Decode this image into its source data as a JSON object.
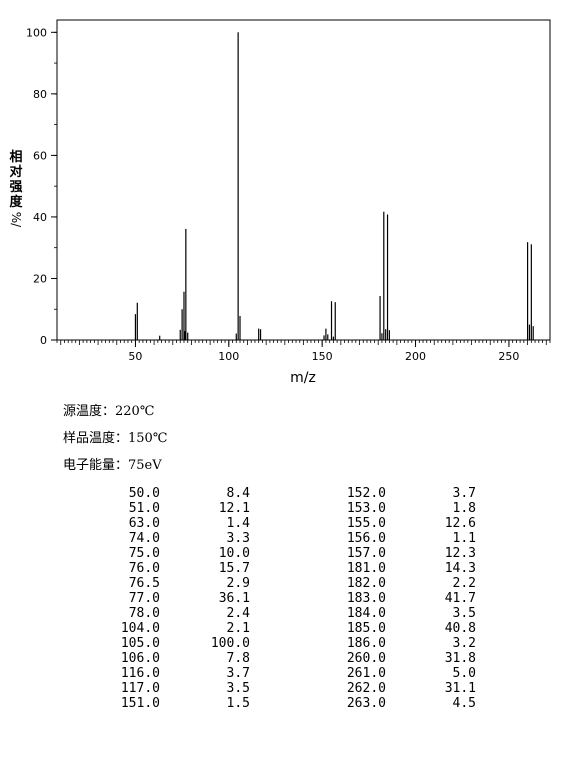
{
  "chart_data": {
    "type": "bar",
    "xlabel": "m/z",
    "ylabel": [
      "相",
      "对",
      "强",
      "度",
      "%/"
    ],
    "xlim": [
      8,
      272
    ],
    "ylim": [
      0,
      104
    ],
    "xticks": [
      50,
      100,
      150,
      200,
      250
    ],
    "yticks": [
      0,
      20,
      40,
      60,
      80,
      100
    ],
    "grid": false,
    "x": [
      50.0,
      51.0,
      63.0,
      74.0,
      75.0,
      76.0,
      76.5,
      77.0,
      78.0,
      104.0,
      105.0,
      106.0,
      116.0,
      117.0,
      151.0,
      152.0,
      153.0,
      155.0,
      156.0,
      157.0,
      181.0,
      182.0,
      183.0,
      184.0,
      185.0,
      186.0,
      260.0,
      261.0,
      262.0,
      263.0
    ],
    "values": [
      8.4,
      12.1,
      1.4,
      3.3,
      10.0,
      15.7,
      2.9,
      36.1,
      2.4,
      2.1,
      100.0,
      7.8,
      3.7,
      3.5,
      1.5,
      3.7,
      1.8,
      12.6,
      1.1,
      12.3,
      14.3,
      2.2,
      41.7,
      3.5,
      40.8,
      3.2,
      31.8,
      5.0,
      31.1,
      4.5
    ]
  },
  "conditions": [
    "源温度：220℃",
    "样品温度：150℃",
    "电子能量：75eV"
  ],
  "table": {
    "left": [
      [
        "50.0",
        "8.4"
      ],
      [
        "51.0",
        "12.1"
      ],
      [
        "63.0",
        "1.4"
      ],
      [
        "74.0",
        "3.3"
      ],
      [
        "75.0",
        "10.0"
      ],
      [
        "76.0",
        "15.7"
      ],
      [
        "76.5",
        "2.9"
      ],
      [
        "77.0",
        "36.1"
      ],
      [
        "78.0",
        "2.4"
      ],
      [
        "104.0",
        "2.1"
      ],
      [
        "105.0",
        "100.0"
      ],
      [
        "106.0",
        "7.8"
      ],
      [
        "116.0",
        "3.7"
      ],
      [
        "117.0",
        "3.5"
      ],
      [
        "151.0",
        "1.5"
      ]
    ],
    "right": [
      [
        "152.0",
        "3.7"
      ],
      [
        "153.0",
        "1.8"
      ],
      [
        "155.0",
        "12.6"
      ],
      [
        "156.0",
        "1.1"
      ],
      [
        "157.0",
        "12.3"
      ],
      [
        "181.0",
        "14.3"
      ],
      [
        "182.0",
        "2.2"
      ],
      [
        "183.0",
        "41.7"
      ],
      [
        "184.0",
        "3.5"
      ],
      [
        "185.0",
        "40.8"
      ],
      [
        "186.0",
        "3.2"
      ],
      [
        "260.0",
        "31.8"
      ],
      [
        "261.0",
        "5.0"
      ],
      [
        "262.0",
        "31.1"
      ],
      [
        "263.0",
        "4.5"
      ]
    ]
  }
}
